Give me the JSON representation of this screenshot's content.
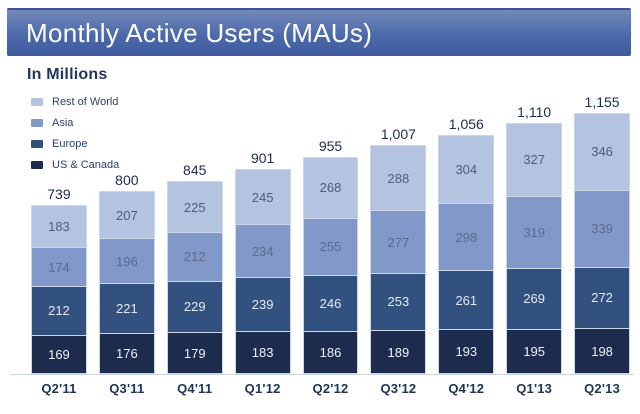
{
  "header": {
    "title": "Monthly Active Users (MAUs)"
  },
  "subtitle": "In Millions",
  "legend_order": [
    "Rest of World",
    "Asia",
    "Europe",
    "US & Canada"
  ],
  "chart_data": {
    "type": "bar",
    "stacked": true,
    "title": "Monthly Active Users (MAUs)",
    "units_label": "In Millions",
    "grid": false,
    "legend_position": "top-left",
    "value_axis_hidden": true,
    "categories": [
      "Q2'11",
      "Q3'11",
      "Q4'11",
      "Q1'12",
      "Q2'12",
      "Q3'12",
      "Q4'12",
      "Q1'13",
      "Q2'13"
    ],
    "series": [
      {
        "name": "US & Canada",
        "color": "#1d2c4d",
        "label_color": "#edf1f8",
        "values": [
          169,
          176,
          179,
          183,
          186,
          189,
          193,
          195,
          198
        ]
      },
      {
        "name": "Europe",
        "color": "#32517f",
        "label_color": "#e4eaf4",
        "values": [
          212,
          221,
          229,
          239,
          246,
          253,
          261,
          269,
          272
        ]
      },
      {
        "name": "Asia",
        "color": "#8298c9",
        "label_color": "#5a6a90",
        "values": [
          174,
          196,
          212,
          234,
          255,
          277,
          298,
          319,
          339
        ]
      },
      {
        "name": "Rest of World",
        "color": "#b4c3df",
        "label_color": "#4d5d7e",
        "values": [
          183,
          207,
          225,
          245,
          268,
          288,
          304,
          327,
          346
        ]
      }
    ],
    "totals": [
      739,
      800,
      845,
      901,
      955,
      1007,
      1056,
      1110,
      1155
    ],
    "totals_display": [
      "739",
      "800",
      "845",
      "901",
      "955",
      "1,007",
      "1,056",
      "1,110",
      "1,155"
    ]
  }
}
